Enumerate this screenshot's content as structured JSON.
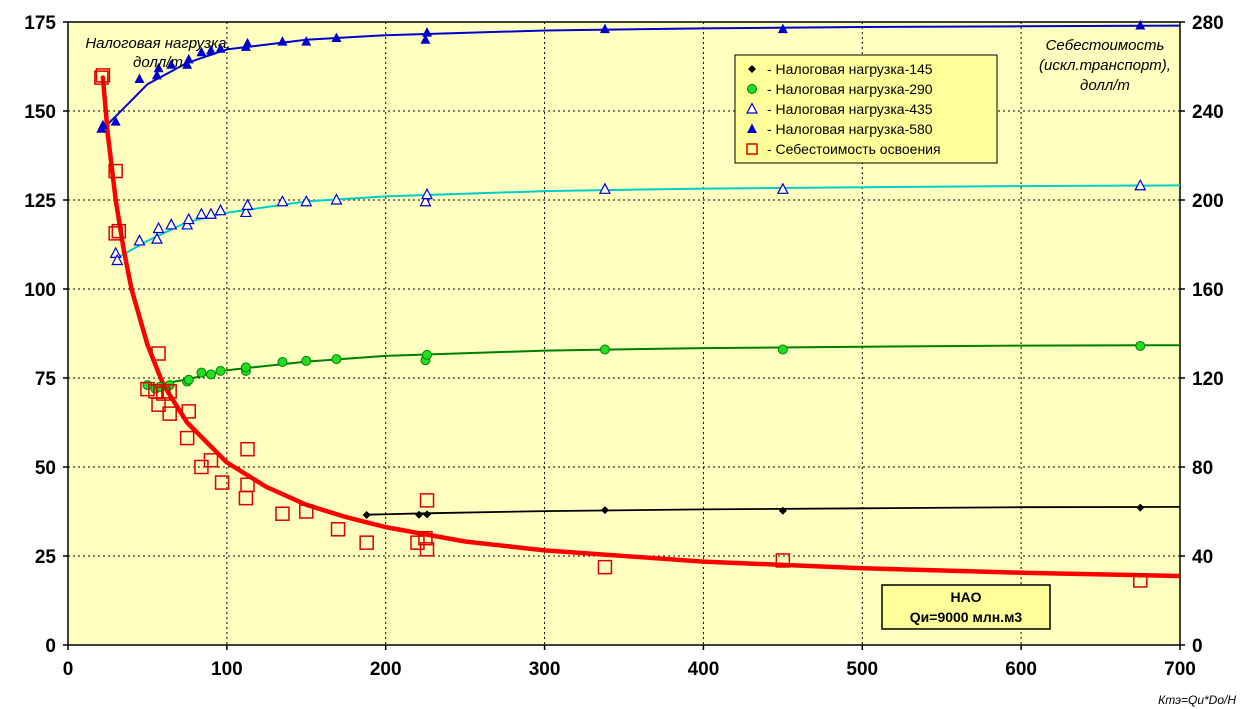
{
  "chart_data": {
    "type": "scatter",
    "x_axis": {
      "range": [
        0,
        700
      ],
      "ticks": [
        0,
        100,
        200,
        300,
        400,
        500,
        600,
        700
      ],
      "label": "Ктэ=Qи*Do/H"
    },
    "y_axis_left": {
      "range": [
        0,
        175
      ],
      "ticks": [
        0,
        25,
        50,
        75,
        100,
        125,
        150,
        175
      ],
      "label": "Налоговая нагрузка, долл/т"
    },
    "y_axis_right": {
      "range": [
        0,
        280
      ],
      "ticks": [
        0,
        40,
        80,
        120,
        160,
        200,
        240,
        280
      ],
      "label_lines": [
        "Себестоимость",
        "(искл.транспорт),",
        "долл/т"
      ]
    },
    "grid": true,
    "legend_position": "top-right",
    "info_box": {
      "lines": [
        "НАО",
        "Qи=9000 млн.м3"
      ]
    },
    "series": [
      {
        "name": "- Налоговая нагрузка-145",
        "axis": "left",
        "marker": "diamond",
        "color": "#000000",
        "points": [
          [
            188,
            36.5
          ],
          [
            221,
            36.6
          ],
          [
            226,
            36.7
          ],
          [
            338,
            37.9
          ],
          [
            450,
            37.7
          ],
          [
            675,
            38.6
          ]
        ],
        "fit": [
          [
            188,
            36.6
          ],
          [
            225,
            37
          ],
          [
            300,
            37.6
          ],
          [
            400,
            38.1
          ],
          [
            500,
            38.4
          ],
          [
            600,
            38.7
          ],
          [
            700,
            38.8
          ]
        ]
      },
      {
        "name": "- Налоговая нагрузка-290",
        "axis": "left",
        "marker": "circle",
        "color": "#008000",
        "fill": "#22dd22",
        "points": [
          [
            50,
            73
          ],
          [
            55,
            72
          ],
          [
            58,
            72.5
          ],
          [
            64,
            73
          ],
          [
            75,
            74
          ],
          [
            76,
            74.5
          ],
          [
            84,
            76.5
          ],
          [
            90,
            76
          ],
          [
            96,
            77
          ],
          [
            112,
            77
          ],
          [
            112,
            78
          ],
          [
            135,
            79.5
          ],
          [
            150,
            79.8
          ],
          [
            169,
            80.3
          ],
          [
            225,
            80
          ],
          [
            226,
            81.5
          ],
          [
            338,
            83
          ],
          [
            450,
            83
          ],
          [
            675,
            84
          ]
        ],
        "fit": [
          [
            50,
            72.6
          ],
          [
            75,
            74.6
          ],
          [
            100,
            77.2
          ],
          [
            150,
            79.6
          ],
          [
            200,
            81.2
          ],
          [
            300,
            82.7
          ],
          [
            400,
            83.4
          ],
          [
            500,
            83.8
          ],
          [
            600,
            84.1
          ],
          [
            700,
            84.2
          ]
        ]
      },
      {
        "name": "- Налоговая нагрузка-435",
        "axis": "left",
        "marker": "triangle-open",
        "color": "#0000cc",
        "points": [
          [
            30,
            110
          ],
          [
            31,
            108
          ],
          [
            45,
            113.5
          ],
          [
            56,
            114
          ],
          [
            57,
            117
          ],
          [
            65,
            118
          ],
          [
            75,
            118
          ],
          [
            76,
            119.5
          ],
          [
            84,
            121
          ],
          [
            90,
            121
          ],
          [
            96,
            122
          ],
          [
            112,
            121.5
          ],
          [
            113,
            123.5
          ],
          [
            135,
            124.5
          ],
          [
            150,
            124.5
          ],
          [
            169,
            125
          ],
          [
            225,
            124.5
          ],
          [
            226,
            126.5
          ],
          [
            338,
            128
          ],
          [
            450,
            128
          ],
          [
            675,
            129
          ]
        ],
        "fit": [
          [
            30,
            108.5
          ],
          [
            50,
            113.5
          ],
          [
            75,
            118.8
          ],
          [
            100,
            121.4
          ],
          [
            150,
            124.6
          ],
          [
            200,
            126
          ],
          [
            300,
            127.5
          ],
          [
            400,
            128.2
          ],
          [
            500,
            128.6
          ],
          [
            600,
            128.9
          ],
          [
            700,
            129.1
          ]
        ]
      },
      {
        "name": "- Налоговая нагрузка-580",
        "axis": "left",
        "marker": "triangle-filled",
        "color": "#0000cc",
        "points": [
          [
            21,
            145
          ],
          [
            22,
            146
          ],
          [
            30,
            147
          ],
          [
            45,
            159
          ],
          [
            56,
            160
          ],
          [
            57,
            162
          ],
          [
            65,
            163
          ],
          [
            75,
            163
          ],
          [
            76,
            164.5
          ],
          [
            84,
            166.5
          ],
          [
            90,
            167
          ],
          [
            96,
            167.5
          ],
          [
            112,
            168
          ],
          [
            113,
            169
          ],
          [
            135,
            169.5
          ],
          [
            150,
            169.5
          ],
          [
            169,
            170.5
          ],
          [
            225,
            170
          ],
          [
            226,
            172
          ],
          [
            338,
            173
          ],
          [
            450,
            173
          ],
          [
            675,
            174
          ]
        ],
        "fit": [
          [
            21,
            144.5
          ],
          [
            30,
            148.5
          ],
          [
            50,
            157.5
          ],
          [
            75,
            163.5
          ],
          [
            100,
            167.3
          ],
          [
            150,
            170
          ],
          [
            200,
            171.3
          ],
          [
            300,
            172.6
          ],
          [
            400,
            173.2
          ],
          [
            500,
            173.6
          ],
          [
            600,
            173.8
          ],
          [
            700,
            174
          ]
        ]
      },
      {
        "name": "- Себестоимость освоения",
        "axis": "right",
        "marker": "square-open",
        "color": "#dd0000",
        "points": [
          [
            21,
            255
          ],
          [
            22,
            256
          ],
          [
            30,
            213
          ],
          [
            30,
            185
          ],
          [
            32,
            186
          ],
          [
            50,
            115
          ],
          [
            55,
            114
          ],
          [
            57,
            131
          ],
          [
            57,
            108
          ],
          [
            60,
            113
          ],
          [
            64,
            104
          ],
          [
            64,
            114
          ],
          [
            75,
            93
          ],
          [
            76,
            105
          ],
          [
            84,
            80
          ],
          [
            90,
            83
          ],
          [
            97,
            73
          ],
          [
            112,
            66
          ],
          [
            113,
            72
          ],
          [
            113,
            88
          ],
          [
            135,
            59
          ],
          [
            150,
            60
          ],
          [
            170,
            52
          ],
          [
            188,
            46
          ],
          [
            220,
            46
          ],
          [
            225,
            48
          ],
          [
            226,
            43
          ],
          [
            226,
            65
          ],
          [
            338,
            35
          ],
          [
            450,
            38
          ],
          [
            675,
            29
          ]
        ],
        "fit": [
          [
            22,
            255
          ],
          [
            25,
            230
          ],
          [
            30,
            200
          ],
          [
            35,
            178
          ],
          [
            40,
            160
          ],
          [
            50,
            135
          ],
          [
            60,
            117
          ],
          [
            75,
            100
          ],
          [
            100,
            82
          ],
          [
            125,
            71
          ],
          [
            150,
            63
          ],
          [
            175,
            57.5
          ],
          [
            200,
            53
          ],
          [
            250,
            46.5
          ],
          [
            300,
            42.5
          ],
          [
            400,
            37.5
          ],
          [
            500,
            34.5
          ],
          [
            600,
            32.5
          ],
          [
            700,
            31
          ]
        ]
      }
    ]
  }
}
